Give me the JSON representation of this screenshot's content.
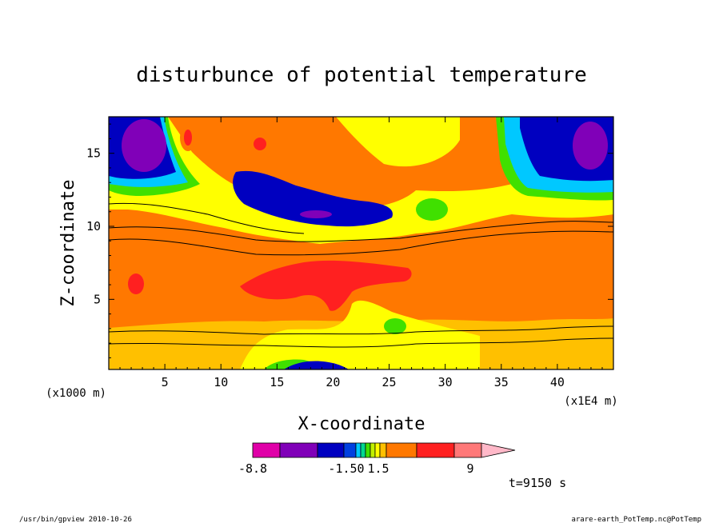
{
  "chart_data": {
    "type": "heatmap",
    "title": "disturbunce of potential temperature",
    "xlabel": "X-coordinate",
    "ylabel": "Z-coordinate",
    "x_unit_left": "(x1000 m)",
    "x_unit_right": "(x1E4 m)",
    "xlim": [
      0,
      45
    ],
    "ylim": [
      0.2,
      17.5
    ],
    "xticks": [
      "5",
      "10",
      "15",
      "20",
      "25",
      "30",
      "35",
      "40"
    ],
    "xtick_values": [
      5,
      10,
      15,
      20,
      25,
      30,
      35,
      40
    ],
    "yticks": [
      "5",
      "10",
      "15"
    ],
    "ytick_values": [
      5,
      10,
      15
    ],
    "colorbar": {
      "labels": [
        "-8.8",
        "-1.50",
        "1.5",
        "9"
      ],
      "colors": [
        "#e000a8",
        "#8000b8",
        "#0000c0",
        "#0040e0",
        "#00c8ff",
        "#00d890",
        "#40e000",
        "#c0f000",
        "#ffff00",
        "#ffc000",
        "#ff7800",
        "#ff2020",
        "#ff7878",
        "#ffb8c8"
      ]
    },
    "regions": [
      {
        "level": "orange",
        "color": "#ff7800",
        "desc": "broad positive layer z 3-10"
      },
      {
        "level": "red",
        "color": "#ff2020",
        "desc": "maximum near x 13-27, z 6-7.5"
      },
      {
        "level": "blue",
        "color": "#0000c0",
        "desc": "negative band x 12-25, z 10-13"
      },
      {
        "level": "purple",
        "color": "#8000b8",
        "desc": "minimum near x 2-5, z 15-17"
      },
      {
        "level": "purple",
        "color": "#8000b8",
        "desc": "minimum near x 41-43, z 15-17"
      }
    ]
  },
  "annotations": {
    "time": "t=9150 s",
    "footer_left": "/usr/bin/gpview  2010-10-26",
    "footer_right": "arare-earth_PotTemp.nc@PotTemp"
  }
}
